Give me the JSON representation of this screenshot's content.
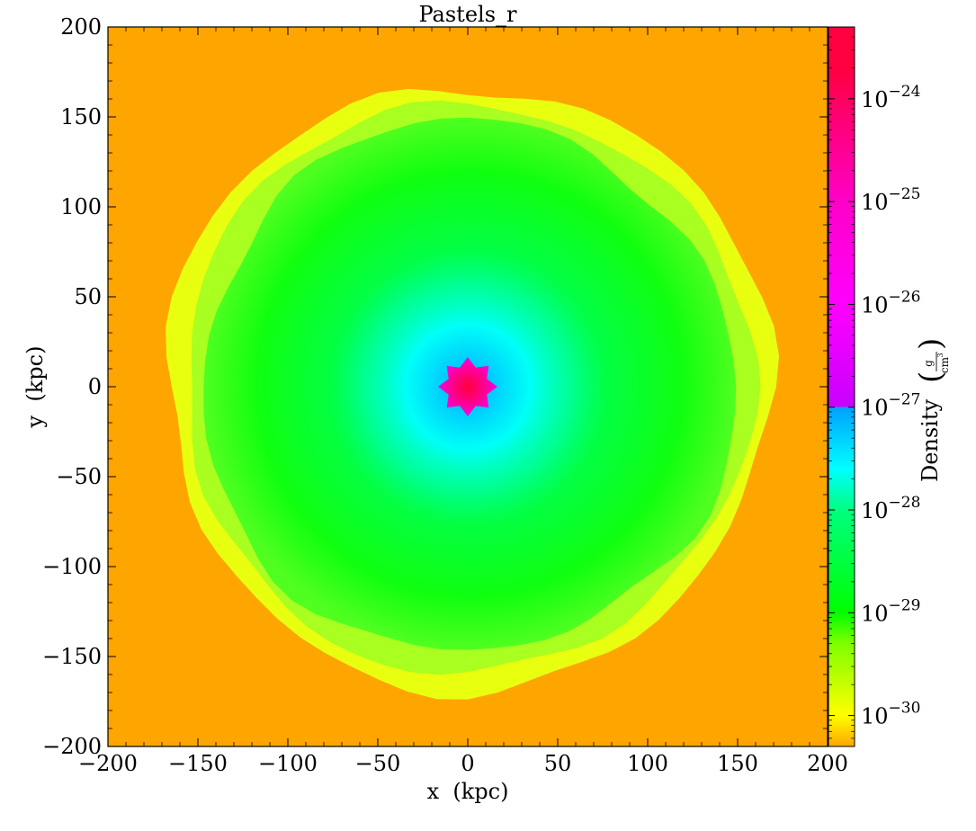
{
  "chart_data": {
    "type": "heatmap",
    "title": "Pastels_r",
    "xlabel": "x  (kpc)",
    "ylabel": "y  (kpc)",
    "xlim": [
      -200,
      200
    ],
    "ylim": [
      -200,
      200
    ],
    "xticks": [
      -200,
      -150,
      -100,
      -50,
      0,
      50,
      100,
      150,
      200
    ],
    "yticks": [
      -200,
      -150,
      -100,
      -50,
      0,
      50,
      100,
      150,
      200
    ],
    "xtick_labels": [
      "−200",
      "−150",
      "−100",
      "−50",
      "0",
      "50",
      "100",
      "150",
      "200"
    ],
    "ytick_labels": [
      "−200",
      "−150",
      "−100",
      "−50",
      "0",
      "50",
      "100",
      "150",
      "200"
    ],
    "colormap": "Pastels_r",
    "colorbar": {
      "label": "Density",
      "units_numerator": "g",
      "units_denominator": "cm",
      "units_denominator_exponent": "3",
      "scale": "log",
      "range": [
        5e-31,
        5e-24
      ],
      "tick_values": [
        1e-30,
        1e-29,
        1e-28,
        1e-27,
        1e-26,
        1e-25,
        1e-24
      ],
      "tick_base": "10",
      "tick_exponents": [
        "−30",
        "−29",
        "−28",
        "−27",
        "−26",
        "−25",
        "−24"
      ],
      "color_stops": [
        {
          "log10": -30.3,
          "color": "#ffa500"
        },
        {
          "log10": -30.0,
          "color": "#ffff00"
        },
        {
          "log10": -29.3,
          "color": "#7fff00"
        },
        {
          "log10": -29.0,
          "color": "#00ff00"
        },
        {
          "log10": -28.0,
          "color": "#00ff7f"
        },
        {
          "log10": -27.6,
          "color": "#00ffff"
        },
        {
          "log10": -27.0,
          "color": "#00a0ff"
        },
        {
          "log10": -27.0,
          "color": "#c800ff"
        },
        {
          "log10": -26.0,
          "color": "#ff00ff"
        },
        {
          "log10": -25.0,
          "color": "#ff00c8"
        },
        {
          "log10": -23.7,
          "color": "#ff0040"
        }
      ]
    },
    "structure": {
      "background_log10_density": -30.3,
      "shell_radius_kpc": 168,
      "shell_log10_density": -29.9,
      "green_interior_log10_density": -29.0,
      "inner_cyan_radius_kpc": 35,
      "core_radius_kpc": 14,
      "core_log10_density": -25.0,
      "center_log10_density": -24.0
    }
  }
}
